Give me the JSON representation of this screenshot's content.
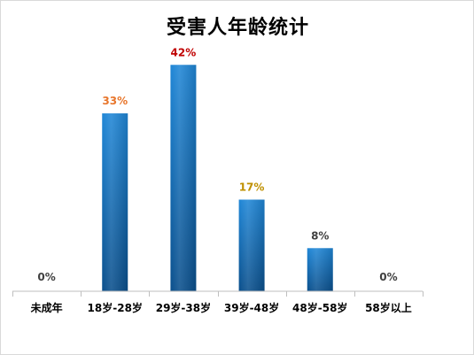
{
  "chart_data": {
    "type": "bar",
    "title": "受害人年龄统计",
    "categories": [
      "未成年",
      "18岁-28岁",
      "29岁-38岁",
      "39岁-48岁",
      "48岁-58岁",
      "58岁以上"
    ],
    "values": [
      0,
      33,
      42,
      17,
      8,
      0
    ],
    "data_labels": [
      "0%",
      "33%",
      "42%",
      "17%",
      "8%",
      "0%"
    ],
    "label_colors": [
      "#404040",
      "#e8762c",
      "#c00000",
      "#bf9000",
      "#404040",
      "#404040"
    ],
    "unit": "%",
    "ylim": [
      0,
      45
    ],
    "xlabel": "",
    "ylabel": "",
    "grid": false,
    "legend": "none",
    "bar_color_top": "#1f86d6",
    "bar_color_bottom": "#0a4f8c",
    "axis_color": "#bfbfbf"
  }
}
